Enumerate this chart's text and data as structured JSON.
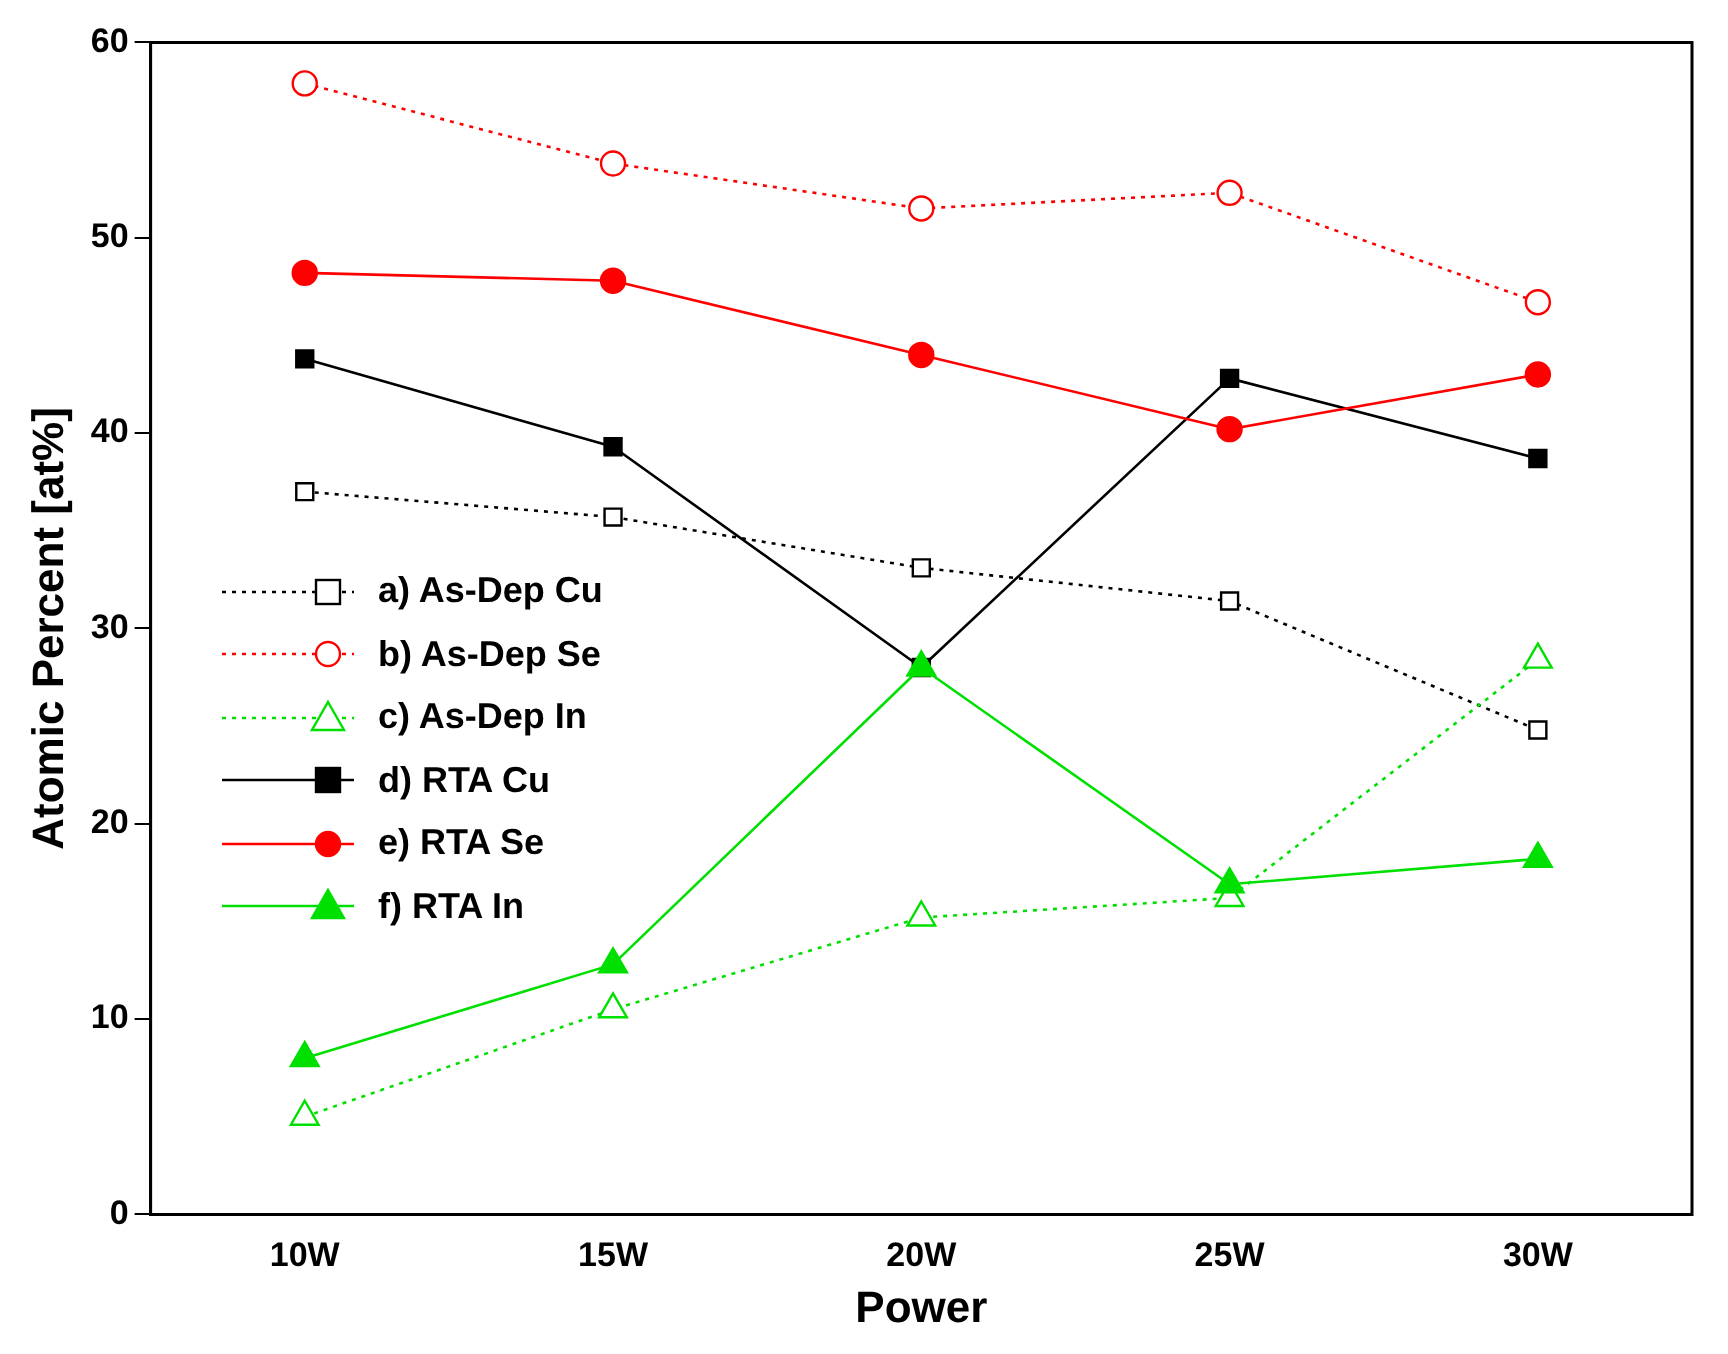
{
  "chart_data": {
    "type": "line",
    "xlabel": "Power",
    "ylabel": "Atomic Percent [at%]",
    "categories": [
      "10W",
      "15W",
      "20W",
      "25W",
      "30W"
    ],
    "ylim": [
      0,
      60
    ],
    "yticks": [
      0,
      10,
      20,
      30,
      40,
      50,
      60
    ],
    "grid": false,
    "legend": "left",
    "series": [
      {
        "name": "a) As-Dep Cu",
        "color": "#000000",
        "marker": "square",
        "line_style": "dotted",
        "values": [
          37.0,
          35.7,
          33.1,
          31.4,
          24.8
        ]
      },
      {
        "name": "b) As-Dep Se",
        "color": "#ff0000",
        "marker": "circle",
        "line_style": "dotted",
        "values": [
          57.9,
          53.8,
          51.5,
          52.3,
          46.7
        ]
      },
      {
        "name": "c) As-Dep In",
        "color": "#00e000",
        "marker": "triangle",
        "line_style": "dotted",
        "values": [
          5.0,
          10.5,
          15.2,
          16.2,
          28.4
        ]
      },
      {
        "name": "d) RTA Cu",
        "color": "#000000",
        "marker": "square",
        "line_style": "solid",
        "values": [
          43.8,
          39.3,
          28.0,
          42.8,
          38.7
        ]
      },
      {
        "name": "e) RTA Se",
        "color": "#ff0000",
        "marker": "circle",
        "line_style": "solid",
        "values": [
          48.2,
          47.8,
          44.0,
          40.2,
          43.0
        ]
      },
      {
        "name": "f) RTA In",
        "color": "#00e000",
        "marker": "triangle",
        "line_style": "solid",
        "values": [
          8.0,
          12.8,
          28.0,
          16.9,
          18.2
        ]
      }
    ]
  }
}
